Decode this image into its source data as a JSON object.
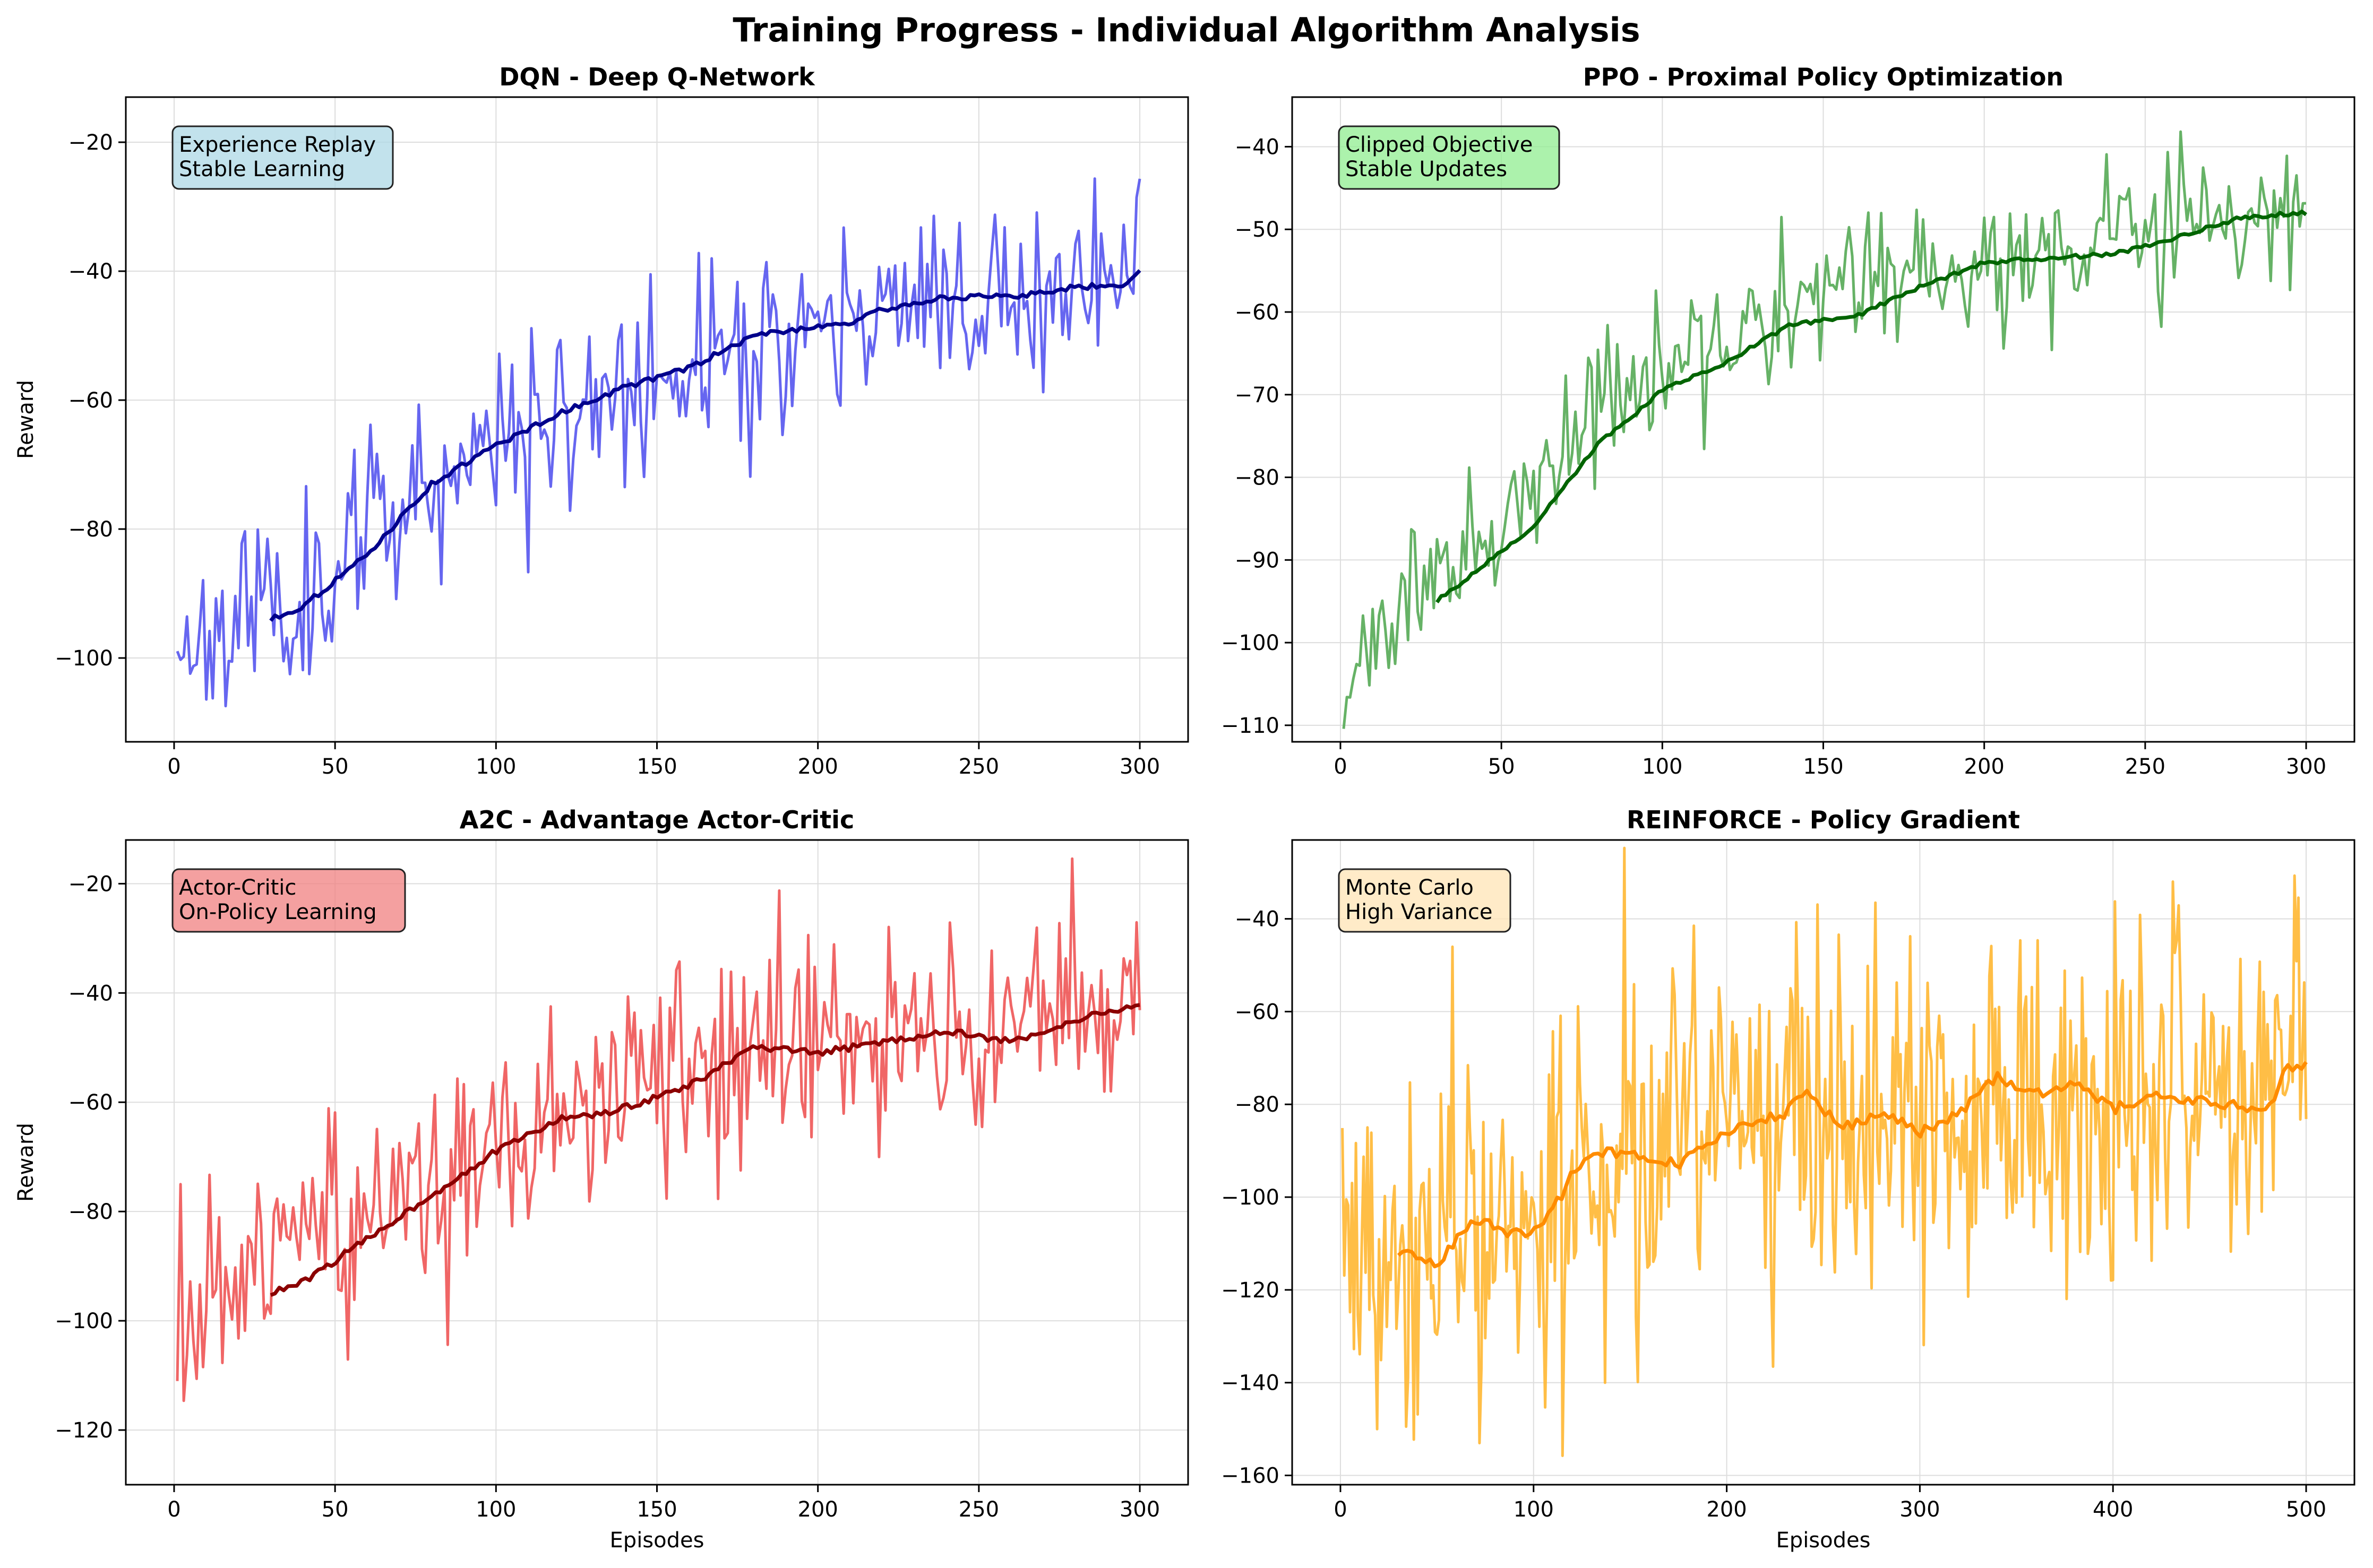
{
  "figure": {
    "title": "Training Progress - Individual Algorithm Analysis"
  },
  "chart_data": [
    {
      "type": "line",
      "title": "DQN - Deep Q-Network",
      "xlabel": "",
      "ylabel": "Reward",
      "xlim": [
        -15,
        315
      ],
      "ylim": [
        -113,
        -13
      ],
      "xticks": [
        0,
        50,
        100,
        150,
        200,
        250,
        300
      ],
      "yticks": [
        -100,
        -80,
        -60,
        -40,
        -20
      ],
      "grid": true,
      "annotation": [
        "Experience Replay",
        "Stable Learning"
      ],
      "annotation_color": "#add8e6",
      "raw_color": "#5555ee",
      "ma_color": "#00008b",
      "raw": {
        "x_start": 1,
        "x_end": 300,
        "n": 300,
        "seed": 11,
        "anchors": [
          [
            1,
            -97
          ],
          [
            40,
            -90
          ],
          [
            80,
            -72
          ],
          [
            120,
            -62
          ],
          [
            160,
            -55
          ],
          [
            200,
            -49
          ],
          [
            240,
            -45
          ],
          [
            300,
            -38
          ]
        ],
        "noise": 7
      },
      "moving_average": {
        "x_start": 30,
        "x_end": 300,
        "anchors": [
          [
            30,
            -94
          ],
          [
            40,
            -92
          ],
          [
            60,
            -84
          ],
          [
            80,
            -73
          ],
          [
            100,
            -67
          ],
          [
            120,
            -62
          ],
          [
            140,
            -58
          ],
          [
            160,
            -55
          ],
          [
            180,
            -50
          ],
          [
            200,
            -48.5
          ],
          [
            210,
            -48
          ],
          [
            220,
            -46
          ],
          [
            240,
            -44
          ],
          [
            260,
            -44
          ],
          [
            280,
            -42.5
          ],
          [
            295,
            -42
          ],
          [
            300,
            -40
          ]
        ]
      }
    },
    {
      "type": "line",
      "title": "PPO - Proximal Policy Optimization",
      "xlabel": "",
      "ylabel": "",
      "xlim": [
        -15,
        315
      ],
      "ylim": [
        -112,
        -34
      ],
      "xticks": [
        0,
        50,
        100,
        150,
        200,
        250,
        300
      ],
      "yticks": [
        -110,
        -100,
        -90,
        -80,
        -70,
        -60,
        -50,
        -40
      ],
      "grid": true,
      "annotation": [
        "Clipped Objective",
        "Stable Updates"
      ],
      "annotation_color": "#90ee90",
      "raw_color": "#55aa55",
      "ma_color": "#006400",
      "raw": {
        "x_start": 1,
        "x_end": 300,
        "n": 300,
        "seed": 23,
        "anchors": [
          [
            1,
            -106
          ],
          [
            20,
            -97
          ],
          [
            40,
            -88
          ],
          [
            60,
            -80
          ],
          [
            80,
            -72
          ],
          [
            100,
            -67
          ],
          [
            120,
            -63
          ],
          [
            140,
            -58
          ],
          [
            160,
            -58
          ],
          [
            180,
            -55
          ],
          [
            200,
            -54
          ],
          [
            240,
            -52
          ],
          [
            300,
            -48
          ]
        ],
        "noise": 4
      },
      "moving_average": {
        "x_start": 30,
        "x_end": 300,
        "anchors": [
          [
            30,
            -95
          ],
          [
            40,
            -92
          ],
          [
            60,
            -86
          ],
          [
            80,
            -76
          ],
          [
            100,
            -69.5
          ],
          [
            120,
            -66
          ],
          [
            140,
            -61.5
          ],
          [
            160,
            -60.5
          ],
          [
            180,
            -57
          ],
          [
            200,
            -54
          ],
          [
            220,
            -53.5
          ],
          [
            240,
            -53
          ],
          [
            260,
            -51
          ],
          [
            280,
            -48.5
          ],
          [
            300,
            -48
          ]
        ]
      }
    },
    {
      "type": "line",
      "title": "A2C - Advantage Actor-Critic",
      "xlabel": "Episodes",
      "ylabel": "Reward",
      "xlim": [
        -15,
        315
      ],
      "ylim": [
        -130,
        -12
      ],
      "xticks": [
        0,
        50,
        100,
        150,
        200,
        250,
        300
      ],
      "yticks": [
        -120,
        -100,
        -80,
        -60,
        -40,
        -20
      ],
      "grid": true,
      "annotation": [
        "Actor-Critic",
        "On-Policy Learning"
      ],
      "annotation_color": "#f08080",
      "raw_color": "#ee5555",
      "ma_color": "#8b0000",
      "raw": {
        "x_start": 1,
        "x_end": 300,
        "n": 300,
        "seed": 37,
        "anchors": [
          [
            1,
            -100
          ],
          [
            40,
            -88
          ],
          [
            80,
            -75
          ],
          [
            120,
            -62
          ],
          [
            160,
            -55
          ],
          [
            200,
            -50
          ],
          [
            240,
            -48
          ],
          [
            300,
            -43
          ]
        ],
        "noise": 10
      },
      "moving_average": {
        "x_start": 30,
        "x_end": 300,
        "anchors": [
          [
            30,
            -95
          ],
          [
            40,
            -93
          ],
          [
            60,
            -85
          ],
          [
            80,
            -77
          ],
          [
            100,
            -69
          ],
          [
            120,
            -63
          ],
          [
            135,
            -62
          ],
          [
            150,
            -59
          ],
          [
            160,
            -57
          ],
          [
            180,
            -50
          ],
          [
            200,
            -51
          ],
          [
            220,
            -49
          ],
          [
            240,
            -47
          ],
          [
            260,
            -49
          ],
          [
            280,
            -45
          ],
          [
            300,
            -42
          ]
        ]
      }
    },
    {
      "type": "line",
      "title": "REINFORCE - Policy Gradient",
      "xlabel": "Episodes",
      "ylabel": "",
      "xlim": [
        -25,
        525
      ],
      "ylim": [
        -162,
        -23
      ],
      "xticks": [
        0,
        100,
        200,
        300,
        400,
        500
      ],
      "yticks": [
        -160,
        -140,
        -120,
        -100,
        -80,
        -60,
        -40
      ],
      "grid": true,
      "annotation": [
        "Monte Carlo",
        "High Variance"
      ],
      "annotation_color": "#ffe4b5",
      "raw_color": "#ffb732",
      "ma_color": "#ff8c00",
      "raw": {
        "x_start": 1,
        "x_end": 500,
        "n": 500,
        "seed": 53,
        "anchors": [
          [
            1,
            -112
          ],
          [
            50,
            -112
          ],
          [
            100,
            -106
          ],
          [
            150,
            -92
          ],
          [
            200,
            -87
          ],
          [
            250,
            -82
          ],
          [
            300,
            -84
          ],
          [
            350,
            -76
          ],
          [
            400,
            -80
          ],
          [
            450,
            -80
          ],
          [
            500,
            -72
          ]
        ],
        "noise": 19
      },
      "moving_average": {
        "x_start": 30,
        "x_end": 500,
        "anchors": [
          [
            30,
            -112
          ],
          [
            50,
            -114
          ],
          [
            70,
            -105
          ],
          [
            90,
            -108
          ],
          [
            100,
            -107
          ],
          [
            110,
            -103
          ],
          [
            120,
            -95
          ],
          [
            130,
            -90
          ],
          [
            150,
            -91
          ],
          [
            175,
            -93
          ],
          [
            200,
            -86
          ],
          [
            230,
            -82
          ],
          [
            240,
            -77
          ],
          [
            260,
            -85
          ],
          [
            280,
            -82
          ],
          [
            300,
            -86
          ],
          [
            320,
            -82
          ],
          [
            340,
            -74
          ],
          [
            360,
            -78
          ],
          [
            380,
            -75
          ],
          [
            400,
            -81
          ],
          [
            420,
            -78
          ],
          [
            440,
            -79
          ],
          [
            460,
            -80
          ],
          [
            480,
            -82
          ],
          [
            490,
            -72
          ],
          [
            500,
            -71
          ]
        ]
      }
    }
  ]
}
